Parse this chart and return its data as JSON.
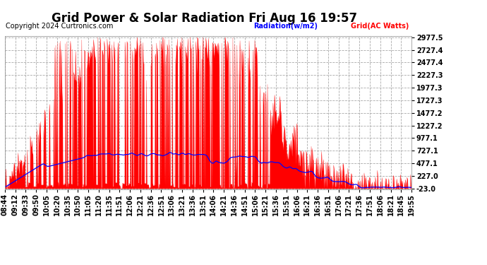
{
  "title": "Grid Power & Solar Radiation Fri Aug 16 19:57",
  "copyright": "Copyright 2024 Curtronics.com",
  "legend_radiation": "Radiation(w/m2)",
  "legend_grid": "Grid(AC Watts)",
  "legend_radiation_color": "#0000FF",
  "legend_grid_color": "#FF0000",
  "y_min": -23.0,
  "y_max": 2977.5,
  "y_ticks": [
    2977.5,
    2727.4,
    2477.4,
    2227.3,
    1977.3,
    1727.3,
    1477.2,
    1227.2,
    977.1,
    727.1,
    477.1,
    227.0,
    -23.0
  ],
  "bg_color": "#ffffff",
  "plot_bg_color": "#ffffff",
  "grid_color": "#aaaaaa",
  "grid_linestyle": "--",
  "bar_color": "#FF0000",
  "line_color": "#0000FF",
  "title_fontsize": 12,
  "copyright_fontsize": 7,
  "tick_fontsize": 7,
  "x_tick_labels": [
    "08:44",
    "09:12",
    "09:33",
    "09:50",
    "10:05",
    "10:20",
    "10:35",
    "10:50",
    "11:05",
    "11:20",
    "11:35",
    "11:51",
    "12:06",
    "12:21",
    "12:36",
    "12:51",
    "13:06",
    "13:21",
    "13:36",
    "13:51",
    "14:06",
    "14:21",
    "14:36",
    "14:51",
    "15:06",
    "15:21",
    "15:36",
    "15:51",
    "16:06",
    "16:21",
    "16:36",
    "16:51",
    "17:06",
    "17:21",
    "17:36",
    "17:51",
    "18:06",
    "18:21",
    "18:45",
    "19:55"
  ]
}
